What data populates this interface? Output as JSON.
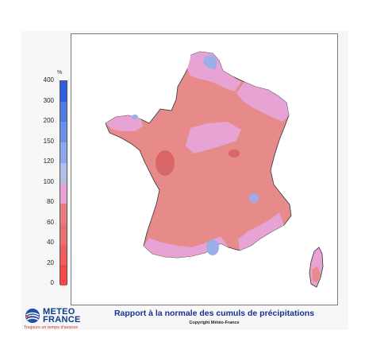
{
  "legend": {
    "unit": "%",
    "ticks": [
      "400",
      "300",
      "200",
      "150",
      "120",
      "100",
      "80",
      "60",
      "40",
      "20",
      "0"
    ],
    "colors": [
      "#2f5fe0",
      "#4f7ae6",
      "#6d8fe9",
      "#8ea8ec",
      "#b0bfe8",
      "#e7a3d3",
      "#e57d7d",
      "#ea6f6f",
      "#ef5e5e",
      "#f24a4a"
    ]
  },
  "map": {
    "colors": {
      "base": "#e68a8a",
      "above_normal": "#e7a3d3",
      "wet": "#9aaee8",
      "dry": "#df6f6f",
      "coast": "#333333"
    }
  },
  "caption": "Rapport à la normale des cumuls de précipitations",
  "copyright": "Copyright Météo-France",
  "logo": {
    "title": "METEO",
    "subtitle": "FRANCE",
    "tagline": "Toujours un temps d'avance"
  }
}
